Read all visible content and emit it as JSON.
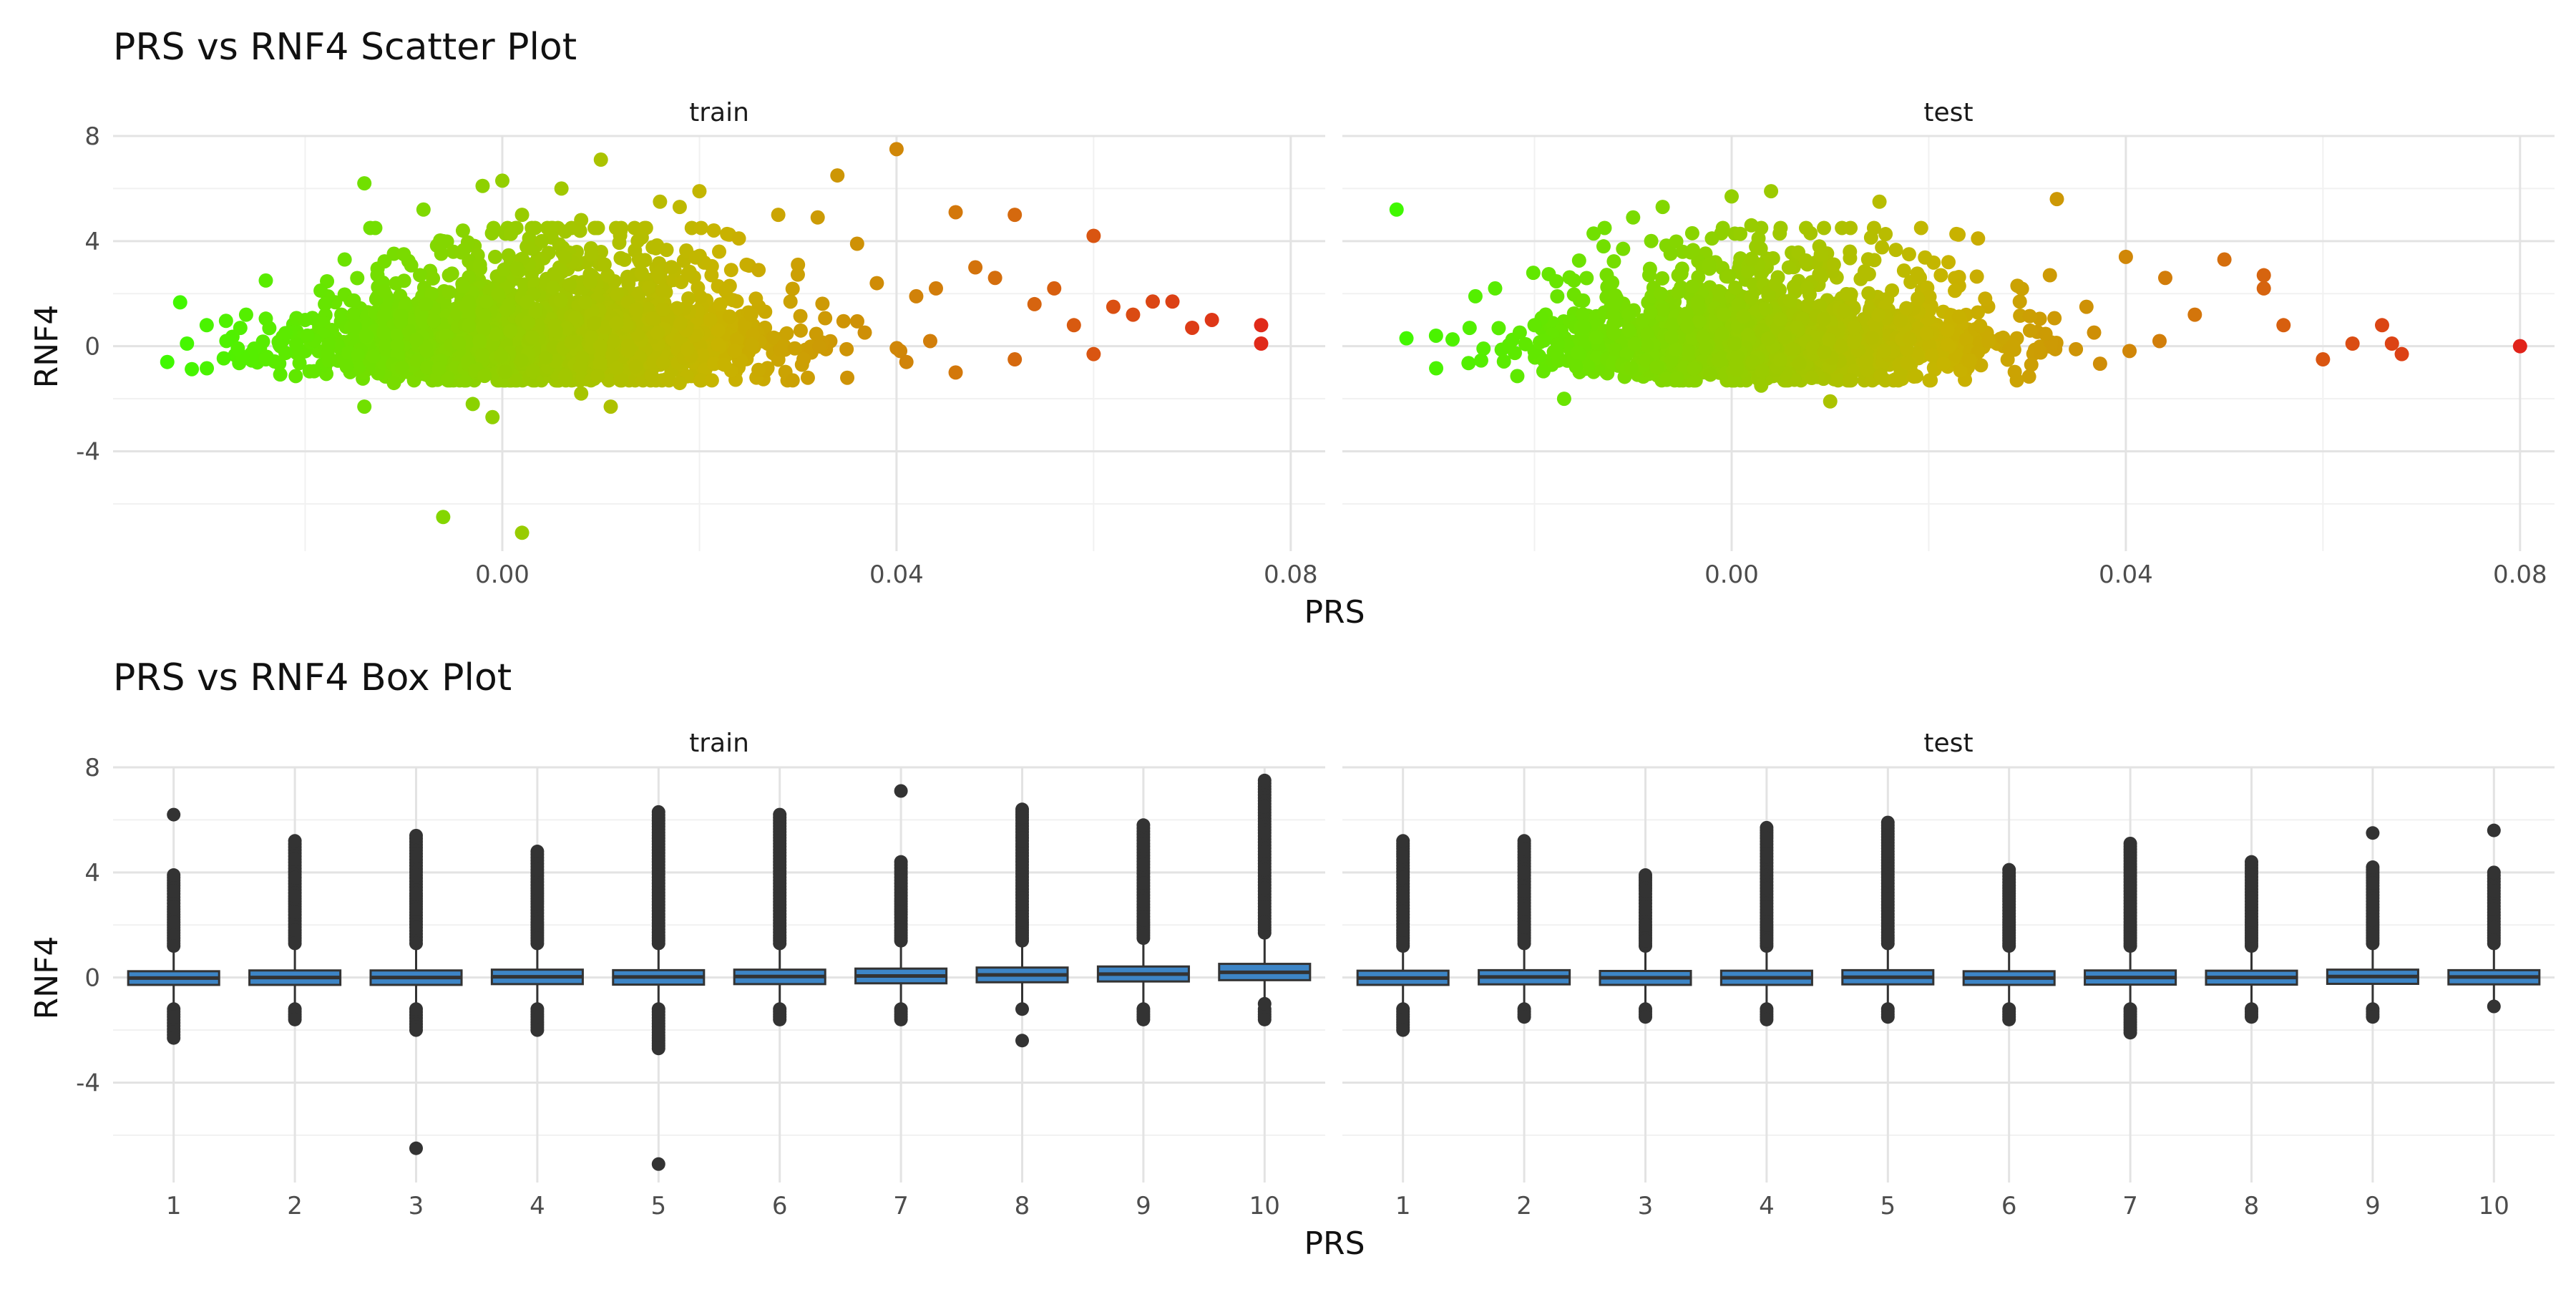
{
  "chart_data": [
    {
      "type": "scatter",
      "title": "PRS vs RNF4 Scatter Plot",
      "xlabel": "PRS",
      "ylabel": "RNF4",
      "panels": [
        "train",
        "test"
      ],
      "xlim": [
        -0.0395,
        0.0835
      ],
      "ylim": [
        -7.8,
        8.0
      ],
      "x_ticks": [
        0.0,
        0.04,
        0.08
      ],
      "x_tick_labels": [
        "0.00",
        "0.04",
        "0.08"
      ],
      "y_ticks": [
        8,
        4,
        0,
        -4
      ],
      "y_tick_labels": [
        "8",
        "4",
        "0",
        "-4"
      ],
      "grid": true,
      "color_gradient": {
        "low": "#33ff00",
        "mid": "#c8b400",
        "high": "#e31a1c"
      },
      "series": [
        {
          "panel": "train",
          "x": [
            -0.034,
            -0.032,
            -0.03,
            -0.028,
            -0.026,
            -0.024,
            -0.022,
            -0.02,
            -0.018,
            -0.016,
            -0.014,
            -0.012,
            -0.01,
            -0.008,
            -0.006,
            -0.004,
            -0.002,
            0.0,
            0.002,
            0.004,
            0.006,
            0.008,
            0.01,
            0.012,
            0.014,
            0.016,
            0.018,
            0.02,
            0.022,
            0.024,
            0.026,
            0.028,
            0.03,
            0.032,
            0.034,
            0.036,
            0.038,
            0.04,
            0.042,
            0.044,
            0.046,
            0.048,
            0.05,
            0.052,
            0.054,
            0.056,
            0.058,
            0.06,
            0.062,
            0.064,
            0.066,
            0.068,
            0.07,
            0.072,
            0.077,
            0.077,
            -0.014,
            -0.024,
            -0.006,
            0.002,
            0.011,
            0.041,
            0.035,
            0.046,
            0.052,
            0.06,
            -0.003,
            -0.001,
            -0.011,
            0.008,
            0.031,
            0.026,
            0.018
          ],
          "y": [
            -0.6,
            0.1,
            0.8,
            0.2,
            1.2,
            2.5,
            0.5,
            1.0,
            1.6,
            3.3,
            6.2,
            2.1,
            3.5,
            5.2,
            4.0,
            4.4,
            6.1,
            6.3,
            5.0,
            4.0,
            6.0,
            4.8,
            7.1,
            4.4,
            3.2,
            5.5,
            5.3,
            5.9,
            3.6,
            4.1,
            2.9,
            5.0,
            3.1,
            4.9,
            6.5,
            3.9,
            2.4,
            7.5,
            1.9,
            2.2,
            5.1,
            3.0,
            2.6,
            5.0,
            1.6,
            2.2,
            0.8,
            4.2,
            1.5,
            1.2,
            1.7,
            1.7,
            0.7,
            1.0,
            0.8,
            0.1,
            -2.3,
            -0.5,
            -6.5,
            -7.1,
            -2.3,
            -0.6,
            -1.2,
            -1.0,
            -0.5,
            -0.3,
            -2.2,
            -2.7,
            -1.4,
            -1.8,
            -1.2,
            -0.9,
            -1.4
          ]
        },
        {
          "panel": "test",
          "x": [
            -0.03,
            -0.034,
            -0.033,
            -0.026,
            -0.024,
            -0.02,
            -0.016,
            -0.013,
            -0.01,
            -0.007,
            -0.004,
            -0.002,
            0.0,
            0.002,
            0.004,
            0.008,
            0.012,
            0.015,
            0.018,
            0.022,
            0.025,
            0.029,
            0.033,
            0.036,
            0.04,
            0.044,
            0.047,
            0.05,
            0.054,
            0.054,
            0.056,
            0.06,
            0.063,
            0.066,
            0.067,
            0.068,
            0.08,
            -0.017,
            0.01,
            0.003
          ],
          "y": [
            0.4,
            5.2,
            0.3,
            1.9,
            2.2,
            0.8,
            2.5,
            3.8,
            4.9,
            5.3,
            4.3,
            4.1,
            5.7,
            4.6,
            5.9,
            4.3,
            3.6,
            5.5,
            3.5,
            3.2,
            4.1,
            2.3,
            5.6,
            1.5,
            3.4,
            2.6,
            1.2,
            3.3,
            2.7,
            2.2,
            0.8,
            -0.5,
            0.1,
            0.8,
            0.1,
            -0.3,
            0.0,
            -2.0,
            -2.1,
            -1.5
          ]
        }
      ]
    },
    {
      "type": "box",
      "title": "PRS vs RNF4 Box Plot",
      "xlabel": "PRS",
      "ylabel": "RNF4",
      "panels": [
        "train",
        "test"
      ],
      "categories": [
        "1",
        "2",
        "3",
        "4",
        "5",
        "6",
        "7",
        "8",
        "9",
        "10"
      ],
      "ylim": [
        -7.8,
        8.0
      ],
      "y_ticks": [
        8,
        4,
        0,
        -4
      ],
      "y_tick_labels": [
        "8",
        "4",
        "0",
        "-4"
      ],
      "grid": true,
      "box_fill": "#3d85c6",
      "series": [
        {
          "panel": "train",
          "boxes": [
            {
              "category": "1",
              "q1": -0.28,
              "median": -0.02,
              "q3": 0.24,
              "whisker_low": -1.0,
              "whisker_high": 1.0,
              "outliers": [
                6.2,
                3.9,
                3.3,
                2.7,
                2.1,
                1.6,
                1.2,
                -1.2,
                -1.5,
                -2.3
              ]
            },
            {
              "category": "2",
              "q1": -0.28,
              "median": 0.0,
              "q3": 0.27,
              "whisker_low": -1.0,
              "whisker_high": 1.1,
              "outliers": [
                5.2,
                4.5,
                3.8,
                3.1,
                2.5,
                1.8,
                1.3,
                -1.2,
                -1.6
              ]
            },
            {
              "category": "3",
              "q1": -0.28,
              "median": 0.0,
              "q3": 0.27,
              "whisker_low": -1.0,
              "whisker_high": 1.1,
              "outliers": [
                5.4,
                4.6,
                3.9,
                3.2,
                2.6,
                1.9,
                1.3,
                -1.2,
                -2.0,
                -6.5
              ]
            },
            {
              "category": "4",
              "q1": -0.25,
              "median": 0.03,
              "q3": 0.3,
              "whisker_low": -1.0,
              "whisker_high": 1.1,
              "outliers": [
                4.8,
                4.1,
                3.4,
                2.8,
                2.1,
                1.5,
                -1.2,
                -1.6,
                -2.0
              ]
            },
            {
              "category": "5",
              "q1": -0.27,
              "median": 0.02,
              "q3": 0.28,
              "whisker_low": -1.0,
              "whisker_high": 1.1,
              "outliers": [
                6.3,
                5.3,
                4.4,
                3.7,
                3.0,
                2.3,
                1.6,
                -1.2,
                -2.2,
                -2.7,
                -7.1
              ]
            },
            {
              "category": "6",
              "q1": -0.25,
              "median": 0.04,
              "q3": 0.3,
              "whisker_low": -1.0,
              "whisker_high": 1.1,
              "outliers": [
                6.2,
                5.1,
                4.4,
                3.7,
                3.0,
                2.3,
                1.6,
                -1.2,
                -1.6
              ]
            },
            {
              "category": "7",
              "q1": -0.22,
              "median": 0.06,
              "q3": 0.34,
              "whisker_low": -1.0,
              "whisker_high": 1.2,
              "outliers": [
                7.1,
                4.4,
                3.7,
                3.0,
                2.4,
                1.8,
                -1.2,
                -1.6
              ]
            },
            {
              "category": "8",
              "q1": -0.18,
              "median": 0.1,
              "q3": 0.38,
              "whisker_low": -1.0,
              "whisker_high": 1.2,
              "outliers": [
                6.4,
                6.1,
                5.2,
                4.4,
                3.6,
                2.9,
                2.2,
                1.6,
                -1.2,
                -2.4
              ]
            },
            {
              "category": "9",
              "q1": -0.15,
              "median": 0.13,
              "q3": 0.42,
              "whisker_low": -1.0,
              "whisker_high": 1.3,
              "outliers": [
                5.8,
                5.1,
                4.3,
                3.6,
                2.9,
                2.2,
                1.6,
                -1.2,
                -1.6
              ]
            },
            {
              "category": "10",
              "q1": -0.1,
              "median": 0.2,
              "q3": 0.52,
              "whisker_low": -1.0,
              "whisker_high": 1.5,
              "outliers": [
                7.5,
                6.5,
                5.5,
                4.8,
                4.1,
                3.4,
                2.7,
                2.0,
                -1.0,
                -1.6
              ]
            }
          ]
        },
        {
          "panel": "test",
          "boxes": [
            {
              "category": "1",
              "q1": -0.28,
              "median": -0.02,
              "q3": 0.26,
              "whisker_low": -1.0,
              "whisker_high": 1.0,
              "outliers": [
                5.2,
                4.6,
                3.8,
                3.1,
                2.4,
                1.8,
                1.3,
                -1.2,
                -1.6,
                -2.0
              ]
            },
            {
              "category": "2",
              "q1": -0.26,
              "median": 0.02,
              "q3": 0.28,
              "whisker_low": -1.0,
              "whisker_high": 1.1,
              "outliers": [
                5.2,
                4.9,
                4.0,
                3.3,
                2.6,
                1.9,
                1.4,
                -1.2,
                -1.5
              ]
            },
            {
              "category": "3",
              "q1": -0.28,
              "median": -0.01,
              "q3": 0.25,
              "whisker_low": -1.0,
              "whisker_high": 1.0,
              "outliers": [
                3.9,
                3.3,
                2.7,
                2.0,
                1.4,
                -1.2,
                -1.5
              ]
            },
            {
              "category": "4",
              "q1": -0.28,
              "median": -0.01,
              "q3": 0.26,
              "whisker_low": -1.0,
              "whisker_high": 1.0,
              "outliers": [
                5.7,
                5.3,
                4.6,
                3.4,
                2.7,
                2.0,
                1.4,
                -1.2,
                -1.6
              ]
            },
            {
              "category": "5",
              "q1": -0.26,
              "median": 0.01,
              "q3": 0.28,
              "whisker_low": -1.0,
              "whisker_high": 1.1,
              "outliers": [
                5.9,
                4.8,
                3.7,
                3.0,
                2.3,
                1.6,
                -1.2,
                -1.5
              ]
            },
            {
              "category": "6",
              "q1": -0.28,
              "median": -0.02,
              "q3": 0.24,
              "whisker_low": -1.0,
              "whisker_high": 1.0,
              "outliers": [
                4.1,
                3.5,
                2.9,
                2.2,
                1.6,
                -1.2,
                -1.6
              ]
            },
            {
              "category": "7",
              "q1": -0.27,
              "median": 0.0,
              "q3": 0.27,
              "whisker_low": -1.0,
              "whisker_high": 1.0,
              "outliers": [
                5.1,
                4.1,
                3.4,
                2.7,
                2.0,
                1.4,
                -1.2,
                -1.8,
                -2.1
              ]
            },
            {
              "category": "8",
              "q1": -0.27,
              "median": 0.0,
              "q3": 0.26,
              "whisker_low": -1.0,
              "whisker_high": 1.0,
              "outliers": [
                4.4,
                3.6,
                2.9,
                2.2,
                1.6,
                -1.2,
                -1.5
              ]
            },
            {
              "category": "9",
              "q1": -0.24,
              "median": 0.04,
              "q3": 0.3,
              "whisker_low": -1.0,
              "whisker_high": 1.1,
              "outliers": [
                5.5,
                4.2,
                3.6,
                2.9,
                2.2,
                1.6,
                -1.2,
                -1.5
              ]
            },
            {
              "category": "10",
              "q1": -0.26,
              "median": 0.02,
              "q3": 0.28,
              "whisker_low": -1.0,
              "whisker_high": 1.1,
              "outliers": [
                5.6,
                4.0,
                3.3,
                2.6,
                1.9,
                1.4,
                -1.1
              ]
            }
          ]
        }
      ]
    }
  ]
}
